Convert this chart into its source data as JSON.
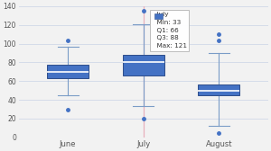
{
  "categories": [
    "June",
    "July",
    "August"
  ],
  "boxes": [
    {
      "q1": 63,
      "median": 70,
      "q3": 78,
      "whislo": 45,
      "whishi": 97,
      "fliers": [
        30,
        103
      ]
    },
    {
      "q1": 66,
      "median": 80,
      "q3": 88,
      "whislo": 33,
      "whishi": 121,
      "fliers": [
        20,
        135
      ]
    },
    {
      "q1": 45,
      "median": 50,
      "q3": 56,
      "whislo": 12,
      "whishi": 90,
      "fliers": [
        5,
        103,
        110
      ]
    }
  ],
  "box_color": "#4472c4",
  "box_edge_color": "#2e4d8a",
  "median_color": "#ffffff",
  "whisker_color": "#7a9cc7",
  "cap_color": "#7a9cc7",
  "flier_color": "#4472c4",
  "bg_color": "#f2f2f2",
  "grid_color": "#d0d8e8",
  "ylim": [
    0,
    140
  ],
  "yticks": [
    0,
    20,
    40,
    60,
    80,
    100,
    120,
    140
  ],
  "tooltip_label": "July",
  "tooltip_min": 33,
  "tooltip_q1": 66,
  "tooltip_q3": 88,
  "tooltip_max": 121,
  "vline_color": "#e8b0bc",
  "box_width": 0.55
}
